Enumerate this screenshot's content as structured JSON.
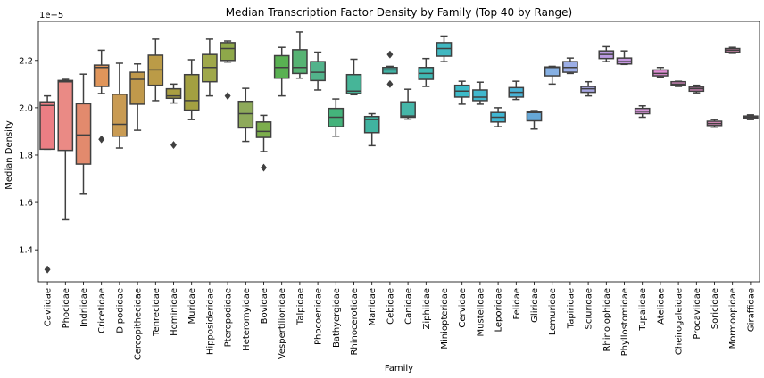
{
  "chart_data": {
    "type": "box",
    "title": "Median Transcription Factor Density by Family (Top 40 by Range)",
    "xlabel": "Family",
    "ylabel": "Median Density",
    "scale_label": "1e−5",
    "y_scale_factor": 1e-05,
    "ylim": [
      1.265,
      2.365
    ],
    "yticks": [
      1.4,
      1.6,
      1.8,
      2.0,
      2.2
    ],
    "ytick_labels": [
      "1.4",
      "1.6",
      "1.8",
      "2.0",
      "2.2"
    ],
    "grid": false,
    "legend": "none",
    "categories": [
      "Caviidae",
      "Phocidae",
      "Indriidae",
      "Cricetidae",
      "Dipodidae",
      "Cercopithecidae",
      "Tenrecidae",
      "Hominidae",
      "Muridae",
      "Hipposideridae",
      "Pteropodidae",
      "Heteromyidae",
      "Bovidae",
      "Vespertilionidae",
      "Talpidae",
      "Phocoenidae",
      "Bathyergidae",
      "Rhinocerotidae",
      "Manidae",
      "Cebidae",
      "Canidae",
      "Ziphiidae",
      "Miniopteridae",
      "Cervidae",
      "Mustelidae",
      "Leporidae",
      "Felidae",
      "Gliridae",
      "Lemuridae",
      "Tapiridae",
      "Sciuridae",
      "Rhinolophidae",
      "Phyllostomidae",
      "Tupaiidae",
      "Atelidae",
      "Cheirogaleidae",
      "Procaviidae",
      "Soricidae",
      "Mormoopidae",
      "Giraffidae"
    ],
    "colors": [
      "#ec7e84",
      "#ea8a85",
      "#e28a6d",
      "#e0955a",
      "#c99b53",
      "#c0994b",
      "#bb9b47",
      "#aa9e42",
      "#a3a041",
      "#9fa84a",
      "#8ea84a",
      "#8eaa5a",
      "#7cae4c",
      "#59b152",
      "#56b373",
      "#52b38b",
      "#44b37b",
      "#46b598",
      "#40b3a0",
      "#3fb4a6",
      "#45b6a8",
      "#3fb9b4",
      "#40b8c1",
      "#3dbbc9",
      "#41b8ce",
      "#40b7d3",
      "#48b3d6",
      "#66a7d6",
      "#86b0e3",
      "#9caee6",
      "#a6a5e1",
      "#ba9ae0",
      "#c89ae2",
      "#d697d9",
      "#e190d5",
      "#e48fcd",
      "#e389c6",
      "#e38ec1",
      "#e591bc",
      "#e99dbd"
    ],
    "boxes": [
      {
        "whislo": 1.825,
        "q1": 1.825,
        "med": 2.01,
        "q3": 2.025,
        "whishi": 2.05,
        "fliers": [
          1.317
        ]
      },
      {
        "whislo": 1.527,
        "q1": 1.82,
        "med": 2.11,
        "q3": 2.115,
        "whishi": 2.12,
        "fliers": []
      },
      {
        "whislo": 1.635,
        "q1": 1.762,
        "med": 1.885,
        "q3": 2.017,
        "whishi": 2.142,
        "fliers": []
      },
      {
        "whislo": 2.06,
        "q1": 2.09,
        "med": 2.17,
        "q3": 2.18,
        "whishi": 2.243,
        "fliers": [
          1.867
        ]
      },
      {
        "whislo": 1.83,
        "q1": 1.88,
        "med": 1.93,
        "q3": 2.057,
        "whishi": 2.188,
        "fliers": []
      },
      {
        "whislo": 1.905,
        "q1": 2.015,
        "med": 2.12,
        "q3": 2.15,
        "whishi": 2.185,
        "fliers": []
      },
      {
        "whislo": 2.03,
        "q1": 2.095,
        "med": 2.16,
        "q3": 2.222,
        "whishi": 2.29,
        "fliers": []
      },
      {
        "whislo": 2.02,
        "q1": 2.04,
        "med": 2.05,
        "q3": 2.08,
        "whishi": 2.1,
        "fliers": [
          1.843
        ]
      },
      {
        "whislo": 1.95,
        "q1": 1.99,
        "med": 2.03,
        "q3": 2.14,
        "whishi": 2.203,
        "fliers": []
      },
      {
        "whislo": 2.05,
        "q1": 2.11,
        "med": 2.17,
        "q3": 2.225,
        "whishi": 2.29,
        "fliers": []
      },
      {
        "whislo": 2.193,
        "q1": 2.2,
        "med": 2.25,
        "q3": 2.275,
        "whishi": 2.282,
        "fliers": [
          2.05
        ]
      },
      {
        "whislo": 1.858,
        "q1": 1.915,
        "med": 1.975,
        "q3": 2.027,
        "whishi": 2.082,
        "fliers": []
      },
      {
        "whislo": 1.815,
        "q1": 1.875,
        "med": 1.9,
        "q3": 1.94,
        "whishi": 1.968,
        "fliers": [
          1.747
        ]
      },
      {
        "whislo": 2.05,
        "q1": 2.125,
        "med": 2.17,
        "q3": 2.22,
        "whishi": 2.255,
        "fliers": []
      },
      {
        "whislo": 2.125,
        "q1": 2.145,
        "med": 2.17,
        "q3": 2.245,
        "whishi": 2.32,
        "fliers": []
      },
      {
        "whislo": 2.075,
        "q1": 2.115,
        "med": 2.15,
        "q3": 2.195,
        "whishi": 2.235,
        "fliers": []
      },
      {
        "whislo": 1.88,
        "q1": 1.92,
        "med": 1.96,
        "q3": 1.997,
        "whishi": 2.037,
        "fliers": []
      },
      {
        "whislo": 2.055,
        "q1": 2.06,
        "med": 2.07,
        "q3": 2.14,
        "whishi": 2.205,
        "fliers": []
      },
      {
        "whislo": 1.84,
        "q1": 1.895,
        "med": 1.95,
        "q3": 1.963,
        "whishi": 1.975,
        "fliers": []
      },
      {
        "whislo": 2.145,
        "q1": 2.145,
        "med": 2.16,
        "q3": 2.17,
        "whishi": 2.175,
        "fliers": [
          2.225,
          2.1
        ]
      },
      {
        "whislo": 1.952,
        "q1": 1.96,
        "med": 1.965,
        "q3": 2.025,
        "whishi": 2.078,
        "fliers": []
      },
      {
        "whislo": 2.09,
        "q1": 2.12,
        "med": 2.145,
        "q3": 2.17,
        "whishi": 2.208,
        "fliers": []
      },
      {
        "whislo": 2.195,
        "q1": 2.218,
        "med": 2.25,
        "q3": 2.275,
        "whishi": 2.303,
        "fliers": []
      },
      {
        "whislo": 2.015,
        "q1": 2.045,
        "med": 2.07,
        "q3": 2.095,
        "whishi": 2.112,
        "fliers": []
      },
      {
        "whislo": 2.015,
        "q1": 2.03,
        "med": 2.045,
        "q3": 2.075,
        "whishi": 2.108,
        "fliers": []
      },
      {
        "whislo": 1.92,
        "q1": 1.94,
        "med": 1.96,
        "q3": 1.98,
        "whishi": 2.0,
        "fliers": []
      },
      {
        "whislo": 2.035,
        "q1": 2.045,
        "med": 2.065,
        "q3": 2.085,
        "whishi": 2.112,
        "fliers": []
      },
      {
        "whislo": 1.91,
        "q1": 1.945,
        "med": 1.98,
        "q3": 1.985,
        "whishi": 1.988,
        "fliers": []
      },
      {
        "whislo": 2.1,
        "q1": 2.135,
        "med": 2.17,
        "q3": 2.172,
        "whishi": 2.175,
        "fliers": []
      },
      {
        "whislo": 2.145,
        "q1": 2.15,
        "med": 2.17,
        "q3": 2.195,
        "whishi": 2.21,
        "fliers": []
      },
      {
        "whislo": 2.05,
        "q1": 2.065,
        "med": 2.08,
        "q3": 2.09,
        "whishi": 2.11,
        "fliers": []
      },
      {
        "whislo": 2.195,
        "q1": 2.208,
        "med": 2.225,
        "q3": 2.24,
        "whishi": 2.258,
        "fliers": []
      },
      {
        "whislo": 2.183,
        "q1": 2.185,
        "med": 2.195,
        "q3": 2.21,
        "whishi": 2.24,
        "fliers": []
      },
      {
        "whislo": 1.96,
        "q1": 1.975,
        "med": 1.985,
        "q3": 1.997,
        "whishi": 2.008,
        "fliers": []
      },
      {
        "whislo": 2.13,
        "q1": 2.135,
        "med": 2.145,
        "q3": 2.16,
        "whishi": 2.17,
        "fliers": []
      },
      {
        "whislo": 2.09,
        "q1": 2.095,
        "med": 2.1,
        "q3": 2.11,
        "whishi": 2.112,
        "fliers": []
      },
      {
        "whislo": 2.063,
        "q1": 2.07,
        "med": 2.08,
        "q3": 2.087,
        "whishi": 2.095,
        "fliers": []
      },
      {
        "whislo": 1.918,
        "q1": 1.925,
        "med": 1.933,
        "q3": 1.943,
        "whishi": 1.95,
        "fliers": []
      },
      {
        "whislo": 2.23,
        "q1": 2.235,
        "med": 2.243,
        "q3": 2.25,
        "whishi": 2.255,
        "fliers": []
      },
      {
        "whislo": 1.95,
        "q1": 1.955,
        "med": 1.96,
        "q3": 1.965,
        "whishi": 1.97,
        "fliers": []
      }
    ]
  }
}
